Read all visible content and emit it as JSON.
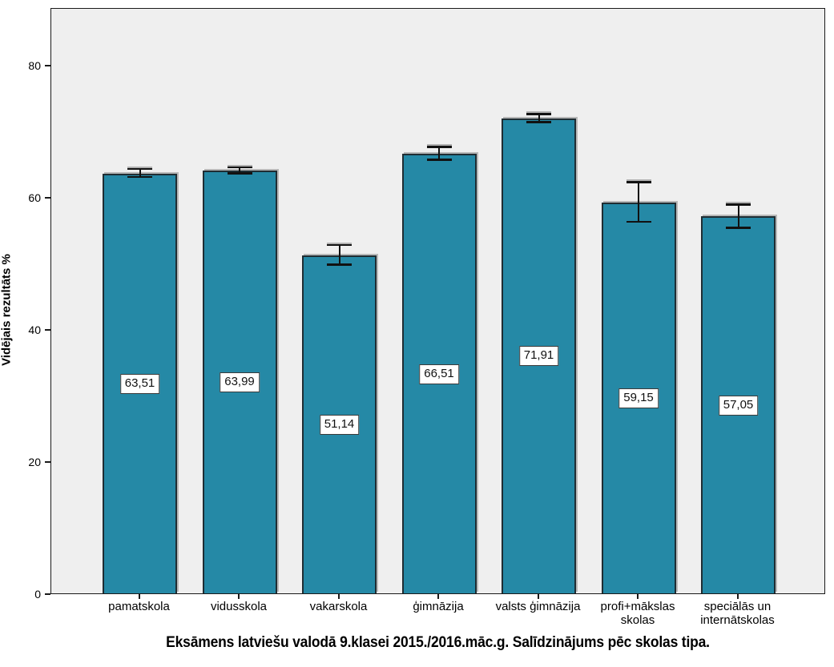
{
  "chart_data": {
    "type": "bar",
    "title": "Eksāmens latviešu valodā 9.klasei 2015./2016.māc.g. Salīdzinājums pēc skolas tipa.",
    "ylabel": "Vidējais rezultāts %",
    "xlabel": "",
    "categories": [
      "pamatskola",
      "vidusskola",
      "vakarskola",
      "ģimnāzija",
      "valsts ģimnāzija",
      "profi+mākslas\nskolas",
      "speciālās un\ninternātskolas"
    ],
    "values": [
      63.51,
      63.99,
      51.14,
      66.51,
      71.91,
      59.15,
      57.05
    ],
    "value_labels": [
      "63,51",
      "63,99",
      "51,14",
      "66,51",
      "71,91",
      "59,15",
      "57,05"
    ],
    "error_bars": [
      {
        "lower": 63.0,
        "upper": 64.2
      },
      {
        "lower": 63.5,
        "upper": 64.45
      },
      {
        "lower": 49.7,
        "upper": 52.7
      },
      {
        "lower": 65.6,
        "upper": 67.5
      },
      {
        "lower": 71.3,
        "upper": 72.5
      },
      {
        "lower": 56.2,
        "upper": 62.2
      },
      {
        "lower": 55.3,
        "upper": 58.8
      }
    ],
    "yticks": [
      0,
      20,
      40,
      60,
      80
    ],
    "ylim": [
      0,
      88.7
    ],
    "grid": false,
    "legend": false,
    "decimal_separator": ",",
    "bar_color": "#2589a6",
    "bar_border_color": "#1f2d33",
    "error_bar_color": "#111111",
    "plot_bg_color": "#efefef",
    "outer_bg_color": "#ffffff"
  }
}
